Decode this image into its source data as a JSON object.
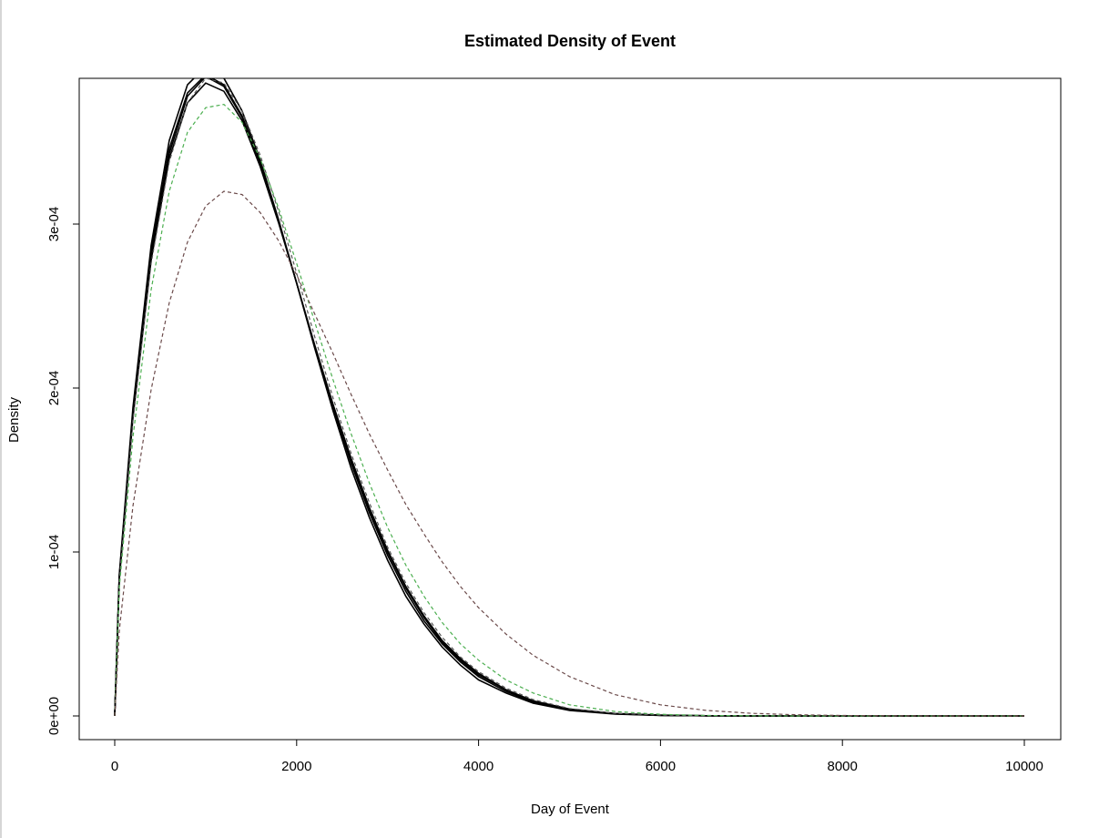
{
  "chart_data": {
    "type": "line",
    "title": "Estimated Density of Event",
    "xlabel": "Day of Event",
    "ylabel": "Density",
    "xlim": [
      0,
      10000
    ],
    "ylim": [
      0,
      0.00039
    ],
    "grid": false,
    "xticks": [
      {
        "value": 0,
        "label": "0"
      },
      {
        "value": 2000,
        "label": "2000"
      },
      {
        "value": 4000,
        "label": "4000"
      },
      {
        "value": 6000,
        "label": "6000"
      },
      {
        "value": 8000,
        "label": "8000"
      },
      {
        "value": 10000,
        "label": "10000"
      }
    ],
    "yticks": [
      {
        "value": 0,
        "label": "0e+00"
      },
      {
        "value": 0.0001,
        "label": "1e-04"
      },
      {
        "value": 0.0002,
        "label": "2e-04"
      },
      {
        "value": 0.0003,
        "label": "3e-04"
      }
    ],
    "x": [
      0,
      50,
      200,
      400,
      600,
      800,
      1000,
      1200,
      1400,
      1600,
      1800,
      2000,
      2200,
      2400,
      2600,
      2800,
      3000,
      3200,
      3400,
      3600,
      3800,
      4000,
      4300,
      4600,
      5000,
      5500,
      6000,
      6500,
      7000,
      7500,
      8000,
      8500,
      9000,
      9500,
      10000
    ],
    "series": [
      {
        "color": "#000000",
        "dash": "solid",
        "values": [
          0,
          8.5e-05,
          0.000185,
          0.000283,
          0.000346,
          0.00038,
          0.000391,
          0.000385,
          0.000366,
          0.000337,
          0.000302,
          0.000264,
          0.000225,
          0.000188,
          0.000154,
          0.000124,
          9.8e-05,
          7.6e-05,
          5.8e-05,
          4.4e-05,
          3.3e-05,
          2.4e-05,
          1.5e-05,
          8.5e-06,
          3.8e-06,
          1.3e-06,
          4e-07,
          1e-07,
          0,
          0,
          0,
          0,
          0,
          0,
          0
        ]
      },
      {
        "color": "#000000",
        "dash": "solid",
        "values": [
          0,
          8.6e-05,
          0.000188,
          0.000287,
          0.000351,
          0.000385,
          0.000396,
          0.000389,
          0.000369,
          0.000339,
          0.000303,
          0.000264,
          0.000224,
          0.000186,
          0.000151,
          0.000121,
          9.5e-05,
          7.3e-05,
          5.6e-05,
          4.2e-05,
          3.1e-05,
          2.2e-05,
          1.4e-05,
          7.8e-06,
          3.4e-06,
          1.1e-06,
          3e-07,
          1e-07,
          0,
          0,
          0,
          0,
          0,
          0,
          0
        ]
      },
      {
        "color": "#000000",
        "dash": "solid",
        "values": [
          0,
          8.3e-05,
          0.000182,
          0.000278,
          0.00034,
          0.000374,
          0.000386,
          0.000381,
          0.000363,
          0.000335,
          0.000301,
          0.000264,
          0.000226,
          0.00019,
          0.000157,
          0.000127,
          0.000101,
          7.9e-05,
          6.1e-05,
          4.6e-05,
          3.5e-05,
          2.6e-05,
          1.6e-05,
          9.2e-06,
          4.2e-06,
          1.5e-06,
          5e-07,
          1e-07,
          0,
          0,
          0,
          0,
          0,
          0,
          0
        ]
      },
      {
        "color": "#000000",
        "dash": "solid",
        "values": [
          0,
          8.4e-05,
          0.000184,
          0.00028,
          0.000343,
          0.000378,
          0.00039,
          0.000384,
          0.000365,
          0.000336,
          0.000302,
          0.000264,
          0.000225,
          0.000189,
          0.000156,
          0.000126,
          0.0001,
          7.8e-05,
          6e-05,
          4.5e-05,
          3.4e-05,
          2.5e-05,
          1.6e-05,
          9e-06,
          4e-06,
          1.4e-06,
          4e-07,
          1e-07,
          0,
          0,
          0,
          0,
          0,
          0,
          0
        ]
      },
      {
        "color": "#555555",
        "dash": "dashed",
        "values": [
          0,
          8.2e-05,
          0.00018,
          0.000276,
          0.000338,
          0.000374,
          0.000389,
          0.000386,
          0.000369,
          0.000342,
          0.000308,
          0.00027,
          0.000231,
          0.000194,
          0.00016,
          0.00013,
          0.000103,
          8.1e-05,
          6.3e-05,
          4.8e-05,
          3.6e-05,
          2.7e-05,
          1.7e-05,
          1e-05,
          4.5e-06,
          1.6e-06,
          5e-07,
          1e-07,
          0,
          0,
          0,
          0,
          0,
          0,
          0
        ]
      },
      {
        "color": "#4caf50",
        "dash": "dashed",
        "values": [
          0,
          7.8e-05,
          0.00017,
          0.00026,
          0.00032,
          0.000356,
          0.000371,
          0.000373,
          0.000362,
          0.00034,
          0.00031,
          0.000276,
          0.00024,
          0.000205,
          0.000172,
          0.000142,
          0.000115,
          9.2e-05,
          7.3e-05,
          5.7e-05,
          4.4e-05,
          3.4e-05,
          2.2e-05,
          1.4e-05,
          6.8e-06,
          2.7e-06,
          1e-06,
          3e-07,
          1e-07,
          0,
          0,
          0,
          0,
          0,
          0
        ]
      },
      {
        "color": "#6b4a4a",
        "dash": "dashed",
        "values": [
          0,
          5.2e-05,
          0.000128,
          0.000199,
          0.000252,
          0.000289,
          0.000311,
          0.00032,
          0.000318,
          0.000307,
          0.00029,
          0.000269,
          0.000245,
          0.000221,
          0.000196,
          0.000172,
          0.00015,
          0.000129,
          0.000111,
          9.4e-05,
          7.9e-05,
          6.6e-05,
          5e-05,
          3.7e-05,
          2.4e-05,
          1.3e-05,
          6.8e-06,
          3.4e-06,
          1.6e-06,
          7e-07,
          3e-07,
          1e-07,
          0,
          0,
          0
        ]
      }
    ]
  }
}
